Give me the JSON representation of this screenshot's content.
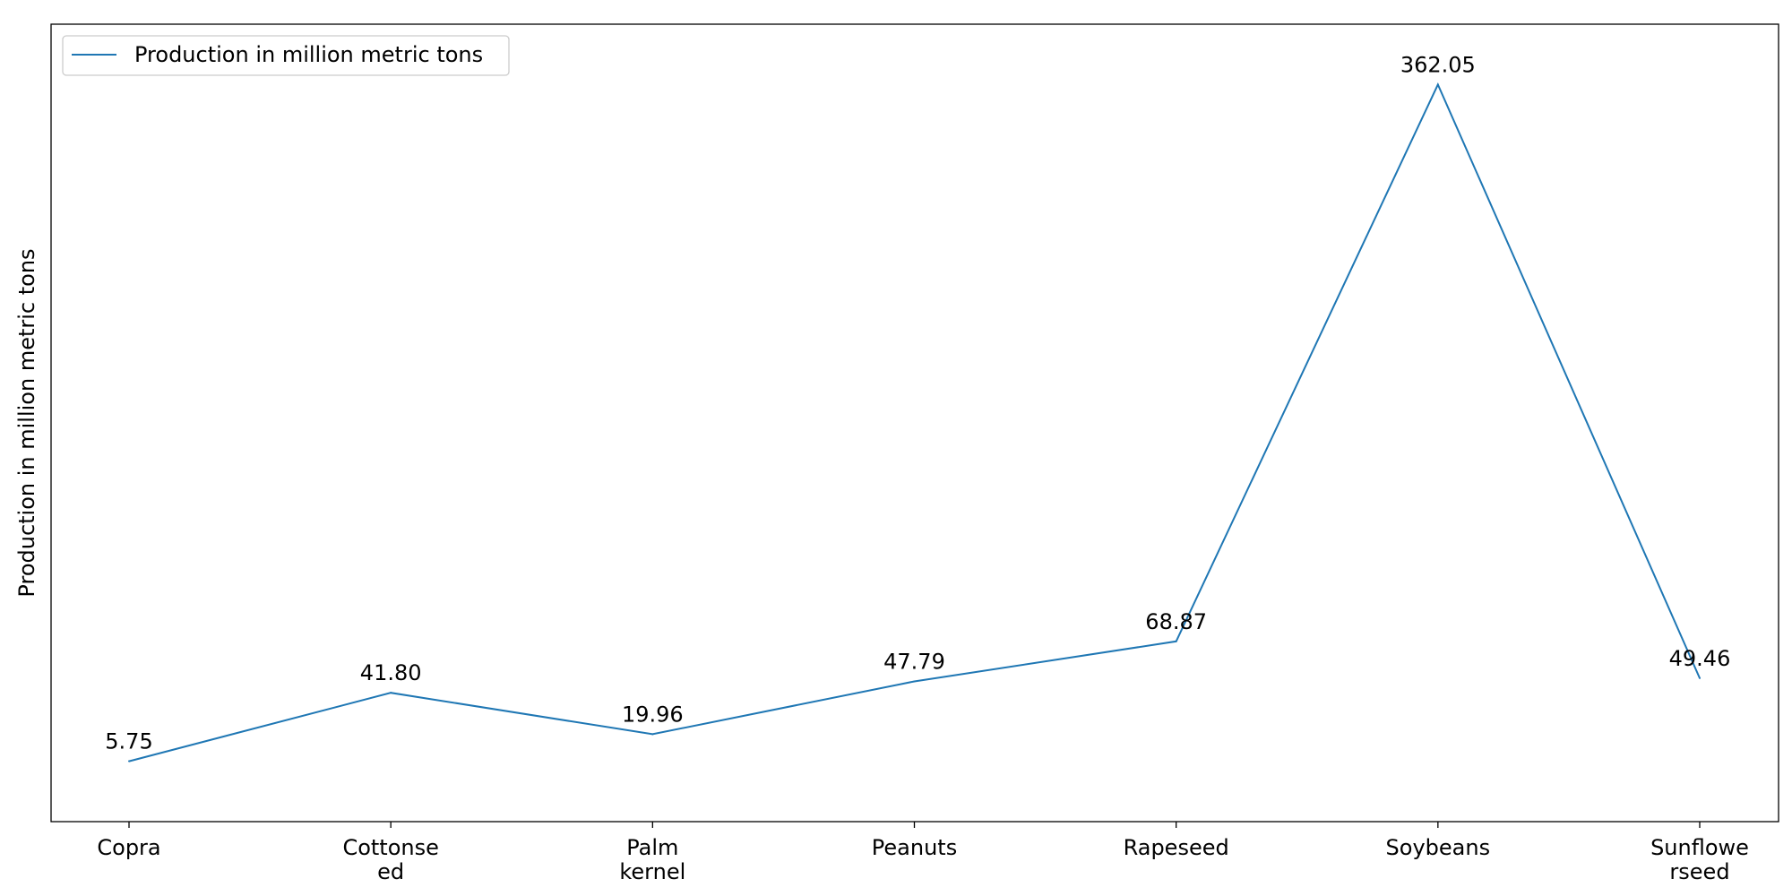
{
  "chart_data": {
    "type": "line",
    "title": "",
    "xlabel": "",
    "ylabel": "Production in million metric tons",
    "categories": [
      [
        "Copra"
      ],
      [
        "Cottonse",
        "ed"
      ],
      [
        "Palm",
        "kernel"
      ],
      [
        "Peanuts"
      ],
      [
        "Rapeseed"
      ],
      [
        "Soybeans"
      ],
      [
        "Sunflowe",
        "rseed"
      ]
    ],
    "series": [
      {
        "name": "Production in million metric tons",
        "color": "#1f77b4",
        "values": [
          5.75,
          41.8,
          19.96,
          47.79,
          68.87,
          362.05,
          49.46
        ],
        "labels": [
          "5.75",
          "41.80",
          "19.96",
          "47.79",
          "68.87",
          "362.05",
          "49.46"
        ]
      }
    ],
    "ylim": [
      -26.07,
      393.86
    ],
    "grid": false,
    "y_ticks_visible": false,
    "legend_position": "top-left"
  }
}
